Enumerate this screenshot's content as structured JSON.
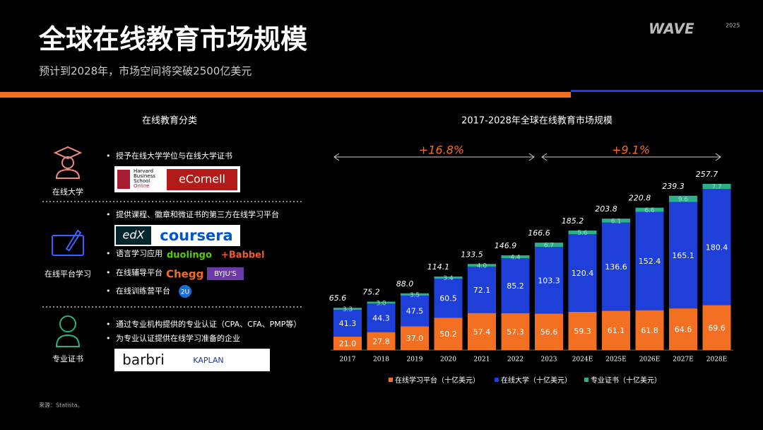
{
  "header": {
    "title": "全球在线教育市场规模",
    "subtitle": "预计到2028年，市场空间将突破2500亿美元",
    "brand": "WAVE",
    "brand_year": "2025"
  },
  "left_panel": {
    "title": "在线教育分类",
    "sections": [
      {
        "label": "在线大学",
        "items": [
          {
            "text": "授予在线大学学位与在线大学证书",
            "logos": [
              [
                "Harvard",
                "Business",
                "School",
                "Online"
              ],
              "eCornell"
            ]
          }
        ]
      },
      {
        "label": "在线平台学习",
        "items": [
          {
            "text": "提供课程、徽章和微证书的第三方在线学习平台",
            "logos": [
              "edX",
              "coursera"
            ]
          },
          {
            "text": "语言学习应用",
            "logos": [
              "duolingo",
              "+Babbel"
            ]
          },
          {
            "text": "在线辅导平台",
            "logos": [
              "Chegg",
              "BYJU'S"
            ]
          },
          {
            "text": "在线训练营平台",
            "logos": [
              "2U"
            ]
          }
        ]
      },
      {
        "label": "专业证书",
        "items": [
          {
            "text": "通过专业机构提供的专业认证（CPA、CFA、PMP等）"
          },
          {
            "text": "为专业认证提供在线学习准备的企业",
            "logos": [
              "barbri",
              "KAPLAN"
            ]
          }
        ]
      }
    ]
  },
  "chart_data": {
    "type": "stacked_bar",
    "title": "2017-2028年全球在线教育市场规模",
    "categories": [
      "2017",
      "2018",
      "2019",
      "2020",
      "2021",
      "2022",
      "2023",
      "2024E",
      "2025E",
      "2026E",
      "2027E",
      "2028E"
    ],
    "series": [
      {
        "name": "在线学习平台（十亿美元）",
        "color": "#f36f21",
        "values": [
          21.0,
          27.8,
          37.0,
          50.2,
          57.4,
          57.3,
          56.6,
          59.3,
          61.1,
          61.8,
          64.6,
          69.6
        ],
        "value_labels": [
          "21.0",
          "27.8",
          "37.0",
          "50.2",
          "57.4",
          "57.3",
          "56.6",
          "59.3",
          "61.1",
          "61.8",
          "64.6",
          "69.6"
        ]
      },
      {
        "name": "在线大学（十亿美元）",
        "color": "#1e3fd8",
        "values": [
          41.3,
          44.3,
          47.5,
          60.5,
          72.1,
          85.2,
          103.3,
          120.4,
          136.6,
          152.4,
          165.1,
          180.4
        ],
        "value_labels": [
          "41.3",
          "44.3",
          "47.5",
          "60.5",
          "72.1",
          "85.2",
          "103.3",
          "120.4",
          "136.6",
          "152.4",
          "165.1",
          "180.4"
        ]
      },
      {
        "name": "专业证书（十亿美元）",
        "color": "#2bb089",
        "values": [
          3.3,
          3.0,
          3.5,
          3.4,
          4.0,
          4.4,
          6.7,
          5.6,
          6.1,
          6.6,
          9.6,
          7.7
        ],
        "value_labels": [
          "3.3",
          "3.0",
          "3.5",
          "3.4",
          "4.0",
          "4.4",
          "6.7",
          "5.6",
          "6.1",
          "6.6",
          "9.6",
          "7.7"
        ]
      }
    ],
    "totals": {
      "values": [
        65.6,
        75.2,
        88.0,
        114.1,
        133.5,
        146.9,
        166.6,
        185.2,
        203.8,
        220.8,
        239.3,
        257.7
      ],
      "value_labels": [
        "65.6",
        "75.2",
        "88.0",
        "114.1",
        "133.5",
        "146.9",
        "166.6",
        "185.2",
        "203.8",
        "220.8",
        "239.3",
        "257.7"
      ]
    },
    "annotations": [
      "+16.8%",
      "+9.1%"
    ]
  },
  "source": "来源：Statista。"
}
